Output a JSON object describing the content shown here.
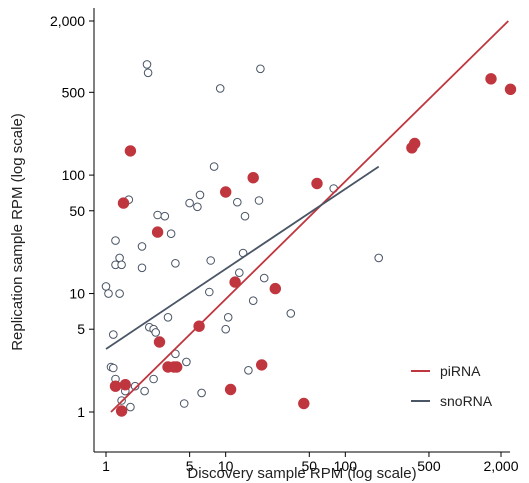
{
  "chart_data": {
    "type": "scatter",
    "title": "",
    "xlabel": "Discovery sample RPM (log scale)",
    "ylabel": "Replication sample RPM (log scale)",
    "x_scale": "log",
    "y_scale": "log",
    "xlim": [
      0.87,
      3000
    ],
    "ylim": [
      0.8,
      2600
    ],
    "grid": false,
    "legend_position": "bottom-right",
    "x_ticks": [
      {
        "value": 1,
        "label": "1"
      },
      {
        "value": 5,
        "label": "5"
      },
      {
        "value": 10,
        "label": "10"
      },
      {
        "value": 50,
        "label": "50"
      },
      {
        "value": 100,
        "label": "100"
      },
      {
        "value": 500,
        "label": "500"
      },
      {
        "value": 2000,
        "label": "2,000"
      }
    ],
    "y_ticks": [
      {
        "value": 1,
        "label": "1"
      },
      {
        "value": 5,
        "label": "5"
      },
      {
        "value": 10,
        "label": "10"
      },
      {
        "value": 50,
        "label": "50"
      },
      {
        "value": 100,
        "label": "100"
      },
      {
        "value": 500,
        "label": "500"
      },
      {
        "value": 2000,
        "label": "2,000"
      }
    ],
    "series": [
      {
        "name": "piRNA",
        "color": "#c0363f",
        "marker": "filled-circle",
        "points": [
          [
            1.2,
            1.65
          ],
          [
            1.35,
            1.02
          ],
          [
            1.45,
            1.7
          ],
          [
            1.4,
            58
          ],
          [
            1.6,
            160
          ],
          [
            2.7,
            33
          ],
          [
            2.8,
            3.9
          ],
          [
            3.3,
            2.4
          ],
          [
            3.7,
            2.4
          ],
          [
            3.9,
            2.4
          ],
          [
            6,
            5.3
          ],
          [
            10,
            72
          ],
          [
            11,
            1.55
          ],
          [
            12,
            12.5
          ],
          [
            17,
            95
          ],
          [
            20,
            2.5
          ],
          [
            26,
            11
          ],
          [
            45,
            1.18
          ],
          [
            58,
            85
          ],
          [
            360,
            170
          ],
          [
            380,
            185
          ],
          [
            1650,
            650
          ],
          [
            2400,
            530
          ]
        ],
        "fit_line": [
          [
            1.1,
            1.0
          ],
          [
            2300,
            2000
          ]
        ]
      },
      {
        "name": "snoRNA",
        "color": "#4a5566",
        "marker": "hollow-circle",
        "points": [
          [
            1,
            11.5
          ],
          [
            1.05,
            10
          ],
          [
            1.1,
            2.4
          ],
          [
            1.15,
            2.35
          ],
          [
            1.15,
            4.5
          ],
          [
            1.2,
            1.9
          ],
          [
            1.2,
            17.5
          ],
          [
            1.2,
            28
          ],
          [
            1.3,
            20
          ],
          [
            1.3,
            10
          ],
          [
            1.35,
            17.5
          ],
          [
            1.35,
            1.25
          ],
          [
            1.45,
            1.5
          ],
          [
            1.55,
            62
          ],
          [
            1.6,
            1.1
          ],
          [
            1.75,
            1.65
          ],
          [
            2,
            25
          ],
          [
            2,
            16.5
          ],
          [
            2.1,
            1.5
          ],
          [
            2.2,
            860
          ],
          [
            2.25,
            730
          ],
          [
            2.3,
            5.2
          ],
          [
            2.5,
            5
          ],
          [
            2.5,
            1.9
          ],
          [
            2.6,
            4.7
          ],
          [
            2.7,
            46
          ],
          [
            3.1,
            45
          ],
          [
            3.3,
            6.3
          ],
          [
            3.5,
            32
          ],
          [
            3.8,
            18
          ],
          [
            3.8,
            3.1
          ],
          [
            4.5,
            1.18
          ],
          [
            4.7,
            2.65
          ],
          [
            5,
            58
          ],
          [
            5.8,
            54
          ],
          [
            6.1,
            68
          ],
          [
            6.3,
            1.45
          ],
          [
            7.3,
            10.3
          ],
          [
            7.5,
            19
          ],
          [
            8,
            118
          ],
          [
            9,
            540
          ],
          [
            10,
            5
          ],
          [
            10.5,
            6.3
          ],
          [
            12.5,
            59
          ],
          [
            13,
            15
          ],
          [
            14,
            22
          ],
          [
            14.5,
            45
          ],
          [
            15.5,
            2.25
          ],
          [
            17,
            8.7
          ],
          [
            19,
            61
          ],
          [
            19.5,
            790
          ],
          [
            21,
            13.5
          ],
          [
            35,
            6.8
          ],
          [
            80,
            77
          ],
          [
            190,
            20
          ]
        ],
        "fit_line": [
          [
            1,
            3.4
          ],
          [
            190,
            118
          ]
        ]
      }
    ]
  }
}
